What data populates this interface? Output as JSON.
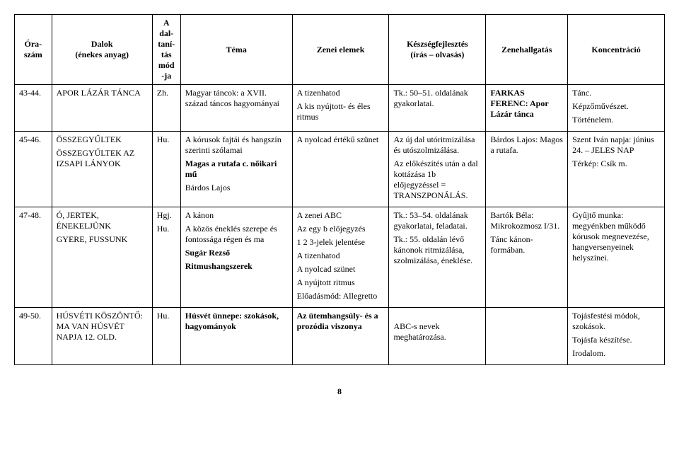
{
  "header": {
    "oraszam": "Óra-\nszám",
    "dalok": "Dalok\n(énekes anyag)",
    "mod": "A\ndal-\ntaní-\ntás\nmód\n-ja",
    "tema": "Téma",
    "zenei": "Zenei elemek",
    "keszseg": "Készségfejlesztés\n(írás – olvasás)",
    "zenehallg": "Zenehallgatás",
    "konc": "Koncentráció"
  },
  "rows": [
    {
      "oraszam": "43-44.",
      "dalok": "APOR LÁZÁR TÁNCA",
      "mod": "Zh.",
      "tema": "Magyar táncok: a XVII. század táncos hagyományai",
      "zenei_lines": [
        "A tizenhatod",
        "A kis nyújtott- és éles ritmus"
      ],
      "keszseg": "Tk.: 50–51. oldalának gyakorlatai.",
      "zenehallg": "FARKAS FERENC: Apor Lázár tánca",
      "konc_lines": [
        "Tánc.",
        "Képzőművészet.",
        "Történelem."
      ]
    },
    {
      "oraszam": "45-46.",
      "dalok_lines": [
        "ÖSSZEGYŰLTEK",
        "ÖSSZEGYŰLTEK AZ IZSAPI LÁNYOK"
      ],
      "mod": "Hu.",
      "tema_lines": [
        "A kórusok fajtái és hangszín szerinti szólamai",
        "Magas a rutafa c. nőikari mű",
        "Bárdos Lajos"
      ],
      "zenei": "A nyolcad értékű szünet",
      "keszseg_lines": [
        "Az új dal utóritmizálása és utószolmizálása.",
        "Az előkészítés után a dal kottázása 1b előjegyzéssel = TRANSZPONÁLÁS."
      ],
      "zenehallg_lines": [
        "Bárdos Lajos: Magos a rutafa."
      ],
      "konc_lines": [
        "Szent Iván napja: június 24. – JELES NAP",
        "Térkép: Csík m."
      ]
    },
    {
      "oraszam": "47-48.",
      "dalok_lines": [
        "Ó, JERTEK, ÉNEKELJÜNK",
        "GYERE, FUSSUNK"
      ],
      "mod_lines": [
        "Hgj.",
        "Hu."
      ],
      "tema_lines": [
        "A kánon",
        "A közös éneklés szerepe és fontossága régen és ma",
        "Sugár Rezső",
        "Ritmushangszerek"
      ],
      "zenei_lines": [
        "A zenei ABC",
        "Az egy b előjegyzés",
        "1 2 3-jelek jelentése",
        "A tizenhatod",
        "A nyolcad szünet",
        "A nyújtott ritmus",
        "Előadásmód: Allegretto"
      ],
      "keszseg_lines": [
        "Tk.: 53–54. oldalának gyakorlatai, feladatai.",
        "Tk.: 55. oldalán lévő kánonok ritmizálása, szolmizálása, éneklése."
      ],
      "zenehallg_lines": [
        "Bartók Béla: Mikrokozmosz I/31.",
        "Tánc kánon-formában."
      ],
      "konc_lines": [
        "Gyűjtő munka: megyénkben működő kórusok megnevezése, hangversenyeinek helyszínei."
      ]
    },
    {
      "oraszam": "49-50.",
      "dalok_lines": [
        "HÚSVÉTI KÖSZÖNTŐ: MA VAN HÚSVÉT NAPJA 12. OLD."
      ],
      "mod": "Hu.",
      "tema": "Húsvét ünnepe: szokások, hagyományok",
      "zenei": "Az ütemhangsúly- és a prozódia viszonya",
      "keszseg": "ABC-s nevek meghatározása.",
      "zenehallg": "",
      "konc_lines": [
        "Tojásfestési módok, szokások.",
        "Tojásfa készítése.",
        "Irodalom."
      ]
    }
  ],
  "page_number": "8"
}
